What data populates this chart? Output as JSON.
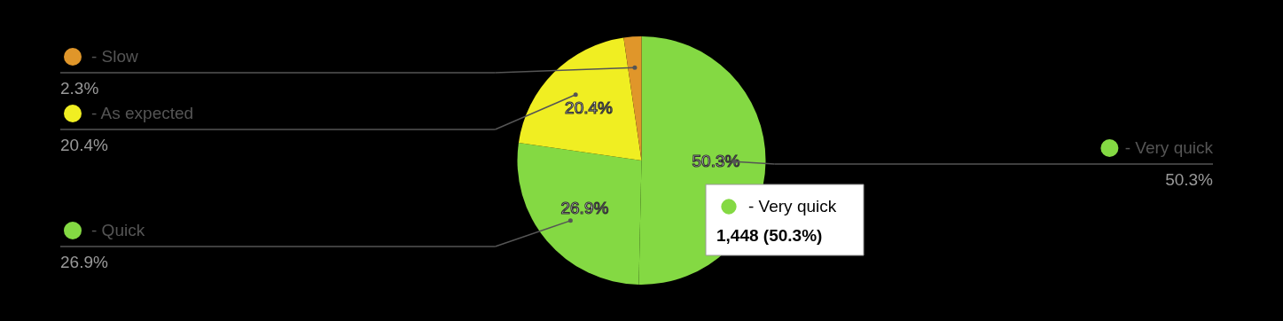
{
  "chart_data": {
    "type": "pie",
    "categories": [
      "- Very quick",
      "- Quick",
      "- As expected",
      "- Slow"
    ],
    "values": [
      50.3,
      26.9,
      20.4,
      2.3
    ],
    "colors": [
      "#84d943",
      "#84d943",
      "#f0ee22",
      "#e0962a"
    ],
    "value_labels": [
      "50.3%",
      "26.9%",
      "20.4%",
      "2.3%"
    ],
    "legend": "left",
    "annotations": [
      "1,448 (50.3%)"
    ]
  }
}
